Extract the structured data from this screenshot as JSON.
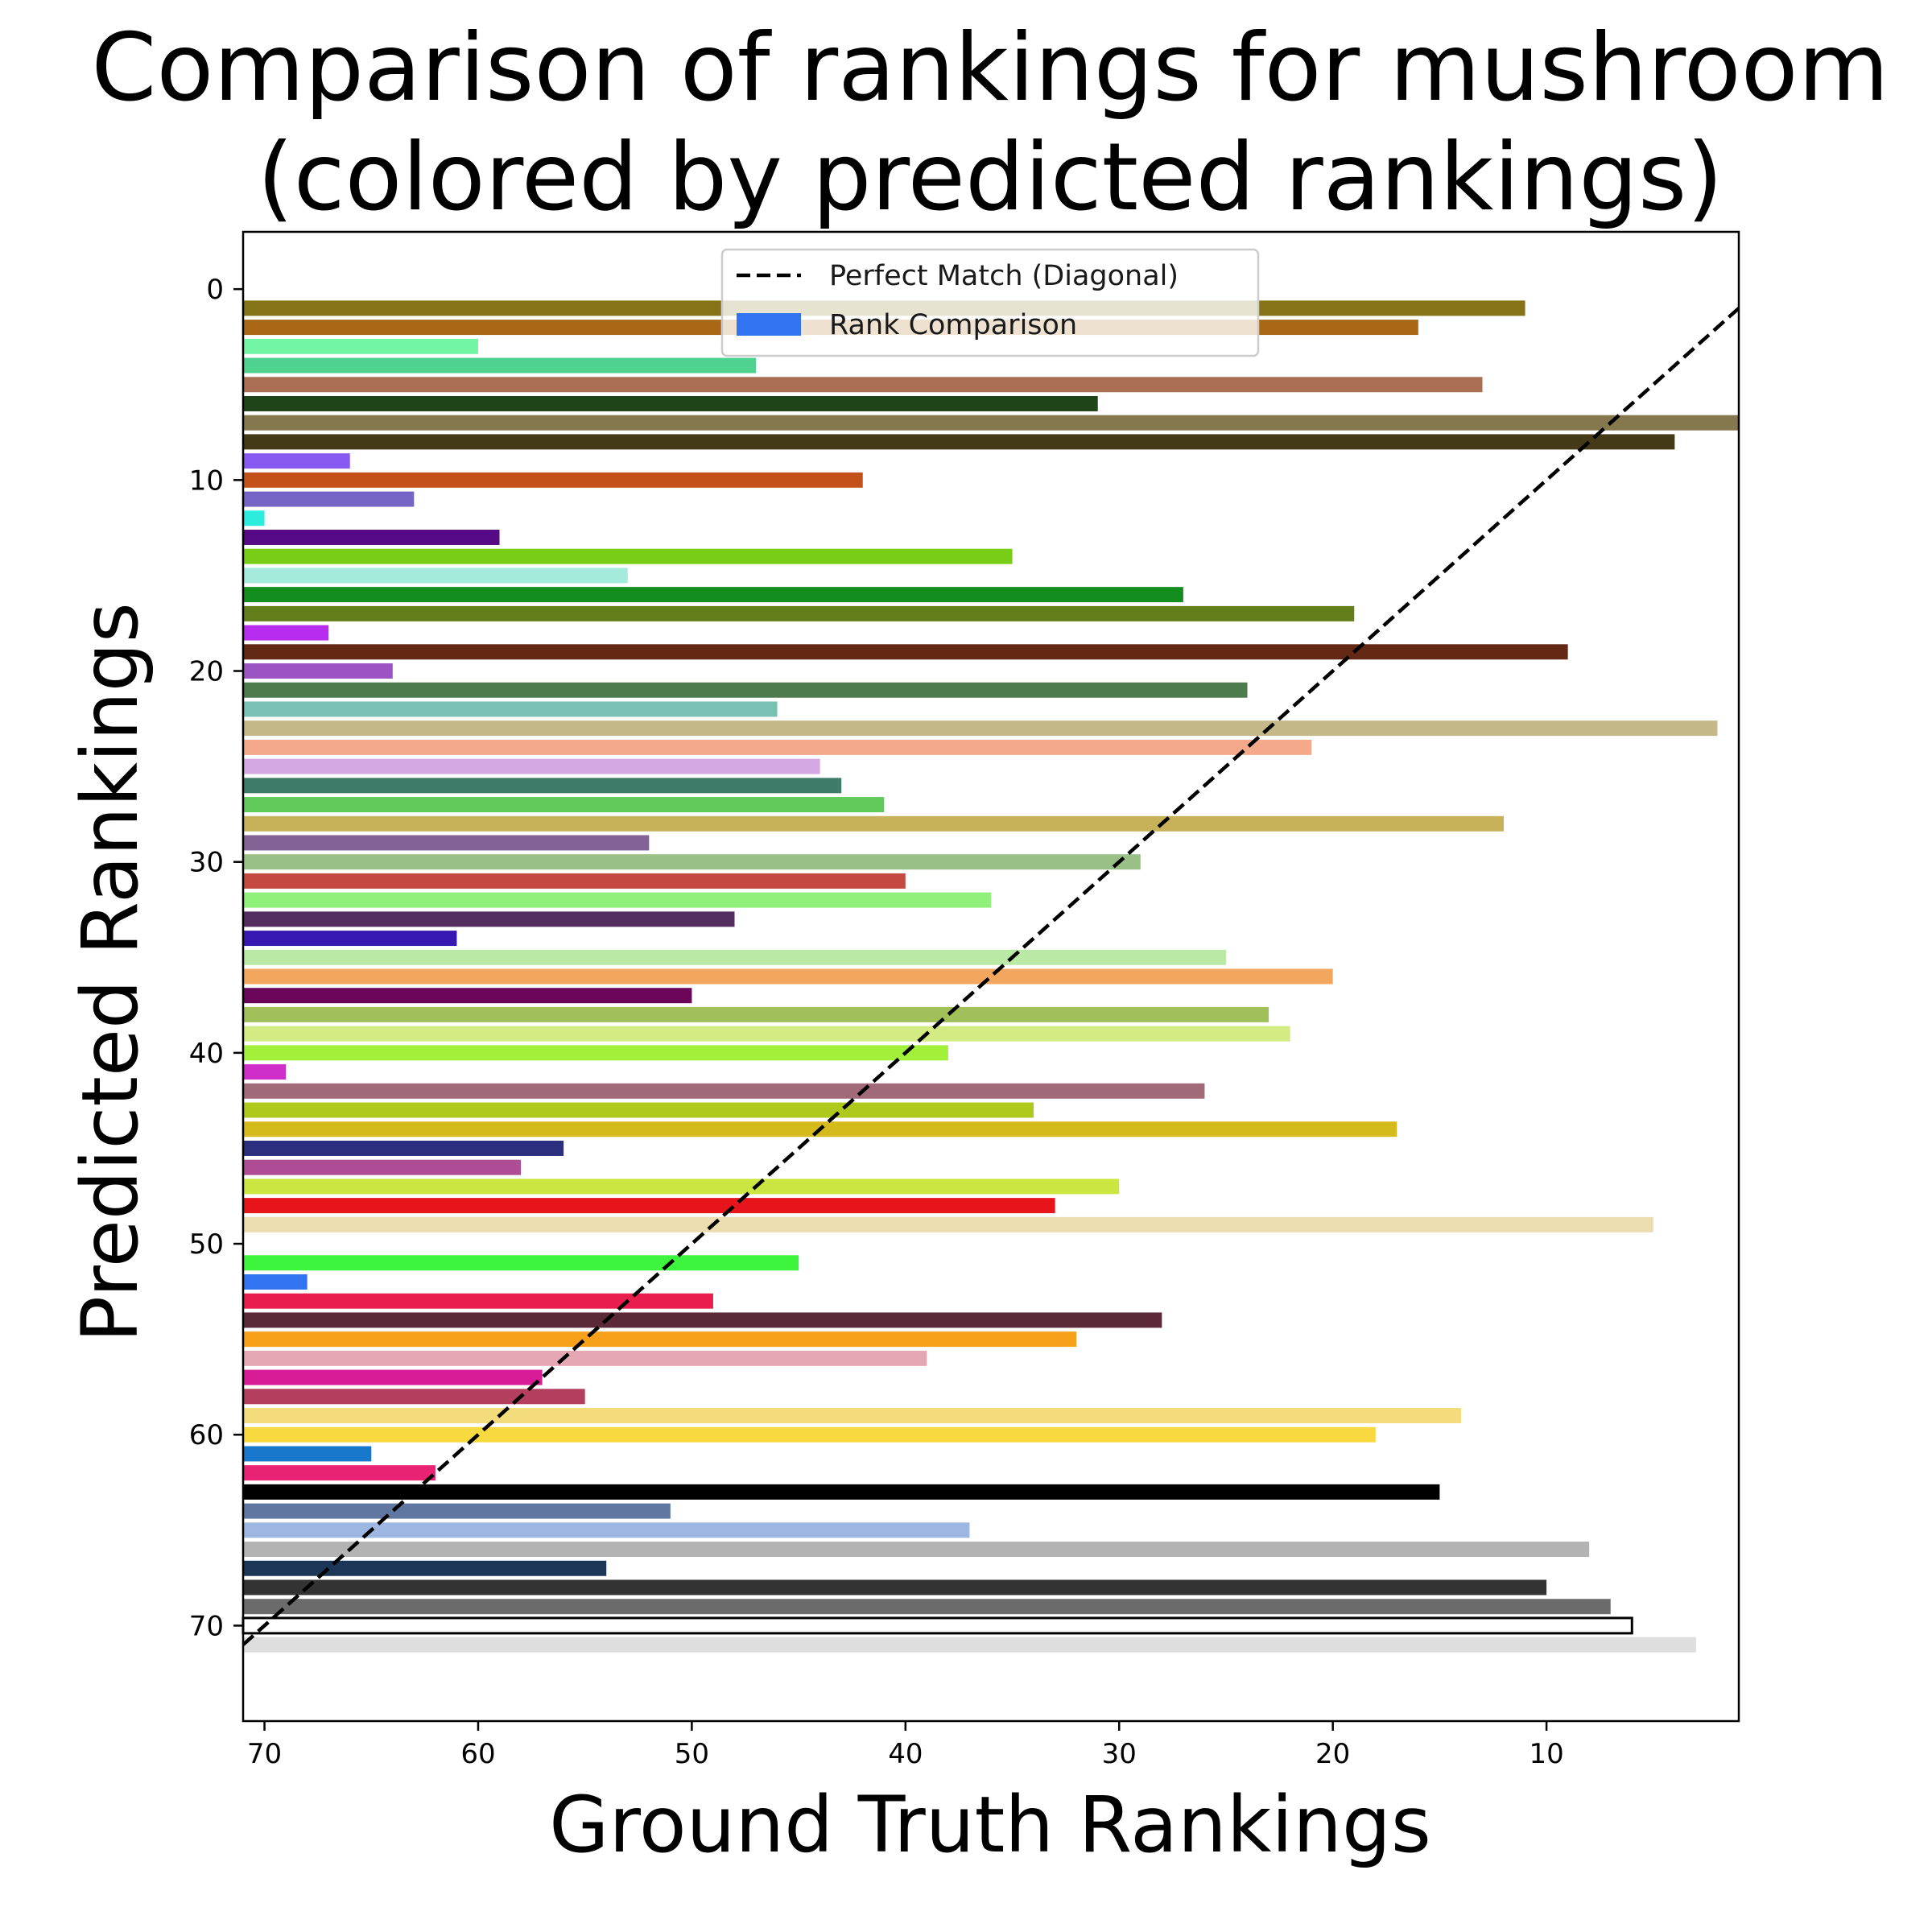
{
  "chart_data": {
    "type": "bar",
    "orientation": "horizontal",
    "title_line1": "Comparison of rankings for mushroom",
    "title_line2": "(colored by predicted rankings)",
    "xlabel": "Ground Truth Rankings",
    "ylabel": "Predicted Rankings",
    "xlim": [
      71,
      1
    ],
    "ylim": [
      75,
      -3
    ],
    "x_inverted": true,
    "y_inverted": true,
    "xticks": [
      70,
      60,
      50,
      40,
      30,
      20,
      10
    ],
    "yticks": [
      0,
      10,
      20,
      30,
      40,
      50,
      60,
      70
    ],
    "legend": {
      "placement": "upper center",
      "entries": [
        {
          "label": "Perfect Match (Diagonal)",
          "style": "dashed-line",
          "color": "#000000"
        },
        {
          "label": "Rank Comparison",
          "style": "patch",
          "color": "#3173f0"
        }
      ]
    },
    "diagonal": {
      "from": [
        71,
        71
      ],
      "to": [
        1,
        1
      ],
      "color": "#000000",
      "style": "dashed"
    },
    "series": [
      {
        "values": [
          [
            1,
            11,
            "#847317"
          ],
          [
            2,
            16,
            "#aa6817"
          ],
          [
            3,
            60,
            "#72f5a5"
          ],
          [
            4,
            47,
            "#4fd18f"
          ],
          [
            5,
            13,
            "#aa6e52"
          ],
          [
            6,
            31,
            "#1f4419"
          ],
          [
            7,
            1,
            "#85784f"
          ],
          [
            8,
            4,
            "#453a17"
          ],
          [
            9,
            66,
            "#8759f0"
          ],
          [
            10,
            42,
            "#c4511a"
          ],
          [
            11,
            63,
            "#7664c6"
          ],
          [
            12,
            70,
            "#2cecde"
          ],
          [
            13,
            59,
            "#560a85"
          ],
          [
            14,
            35,
            "#78ce16"
          ],
          [
            15,
            53,
            "#a4ebdc"
          ],
          [
            16,
            27,
            "#138d1d"
          ],
          [
            17,
            19,
            "#627f1c"
          ],
          [
            18,
            67,
            "#b62def"
          ],
          [
            19,
            9,
            "#632914"
          ],
          [
            20,
            64,
            "#9c53c4"
          ],
          [
            21,
            24,
            "#4d7b4d"
          ],
          [
            22,
            46,
            "#79c1b2"
          ],
          [
            23,
            2,
            "#c4b889"
          ],
          [
            24,
            21,
            "#f4a98a"
          ],
          [
            25,
            44,
            "#d3a8e3"
          ],
          [
            26,
            43,
            "#3f7b6b"
          ],
          [
            27,
            41,
            "#62c95b"
          ],
          [
            28,
            12,
            "#c7b25a"
          ],
          [
            29,
            52,
            "#836295"
          ],
          [
            30,
            29,
            "#98c087"
          ],
          [
            31,
            40,
            "#c44a41"
          ],
          [
            32,
            36,
            "#8ff07a"
          ],
          [
            33,
            48,
            "#542d61"
          ],
          [
            34,
            61,
            "#3718b1"
          ],
          [
            35,
            25,
            "#bae8a5"
          ],
          [
            36,
            20,
            "#f2a65e"
          ],
          [
            37,
            50,
            "#6b0559"
          ],
          [
            38,
            23,
            "#a2c05a"
          ],
          [
            39,
            22,
            "#d4ea82"
          ],
          [
            40,
            38,
            "#a2f03a"
          ],
          [
            41,
            69,
            "#cf2ecb"
          ],
          [
            42,
            26,
            "#a06a78"
          ],
          [
            43,
            34,
            "#aec81b"
          ],
          [
            44,
            17,
            "#d4bb1b"
          ],
          [
            45,
            56,
            "#2c2f7d"
          ],
          [
            46,
            58,
            "#af4c96"
          ],
          [
            47,
            30,
            "#cce641"
          ],
          [
            48,
            33,
            "#e8141b"
          ],
          [
            49,
            5,
            "#ebddb0"
          ],
          [
            50,
            71,
            "#ffffff"
          ],
          [
            51,
            45,
            "#3ef53d"
          ],
          [
            52,
            68,
            "#3173f0"
          ],
          [
            53,
            49,
            "#e91e4e"
          ],
          [
            54,
            28,
            "#5c2938"
          ],
          [
            55,
            32,
            "#f7a11a"
          ],
          [
            56,
            39,
            "#e6a7b5"
          ],
          [
            57,
            57,
            "#d81b96"
          ],
          [
            58,
            55,
            "#b43e5e"
          ],
          [
            59,
            14,
            "#f4dc7d"
          ],
          [
            60,
            18,
            "#f9d940"
          ],
          [
            61,
            65,
            "#1878cc"
          ],
          [
            62,
            62,
            "#e82374"
          ],
          [
            63,
            15,
            "#000000"
          ],
          [
            64,
            51,
            "#5f77a1"
          ],
          [
            65,
            37,
            "#9db7e2"
          ],
          [
            66,
            8,
            "#b3b3b3"
          ],
          [
            67,
            54,
            "#1c3657"
          ],
          [
            68,
            10,
            "#333333"
          ],
          [
            69,
            7,
            "#6b6b6b"
          ],
          [
            70,
            6,
            "#ffffff"
          ],
          [
            71,
            3,
            "#dedede"
          ]
        ]
      }
    ]
  }
}
